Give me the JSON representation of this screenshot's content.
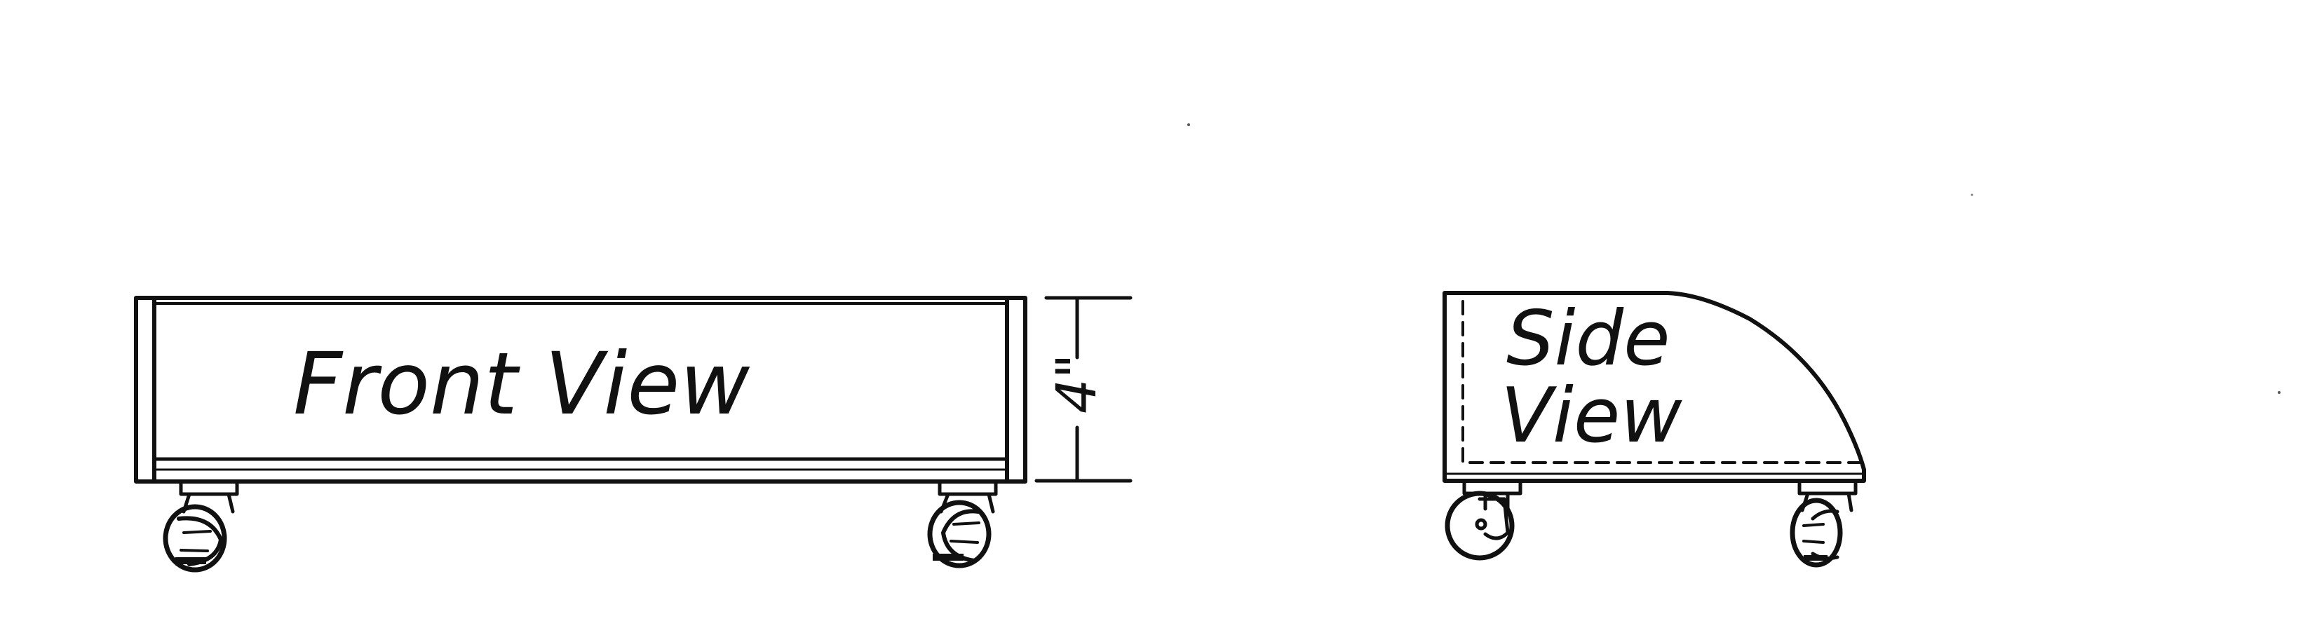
{
  "front_view": {
    "label": "Front View",
    "dimension_label": "4\""
  },
  "side_view": {
    "label_line1": "Side",
    "label_line2": "View"
  },
  "colors": {
    "ink": "#111111",
    "paper": "#ffffff"
  }
}
